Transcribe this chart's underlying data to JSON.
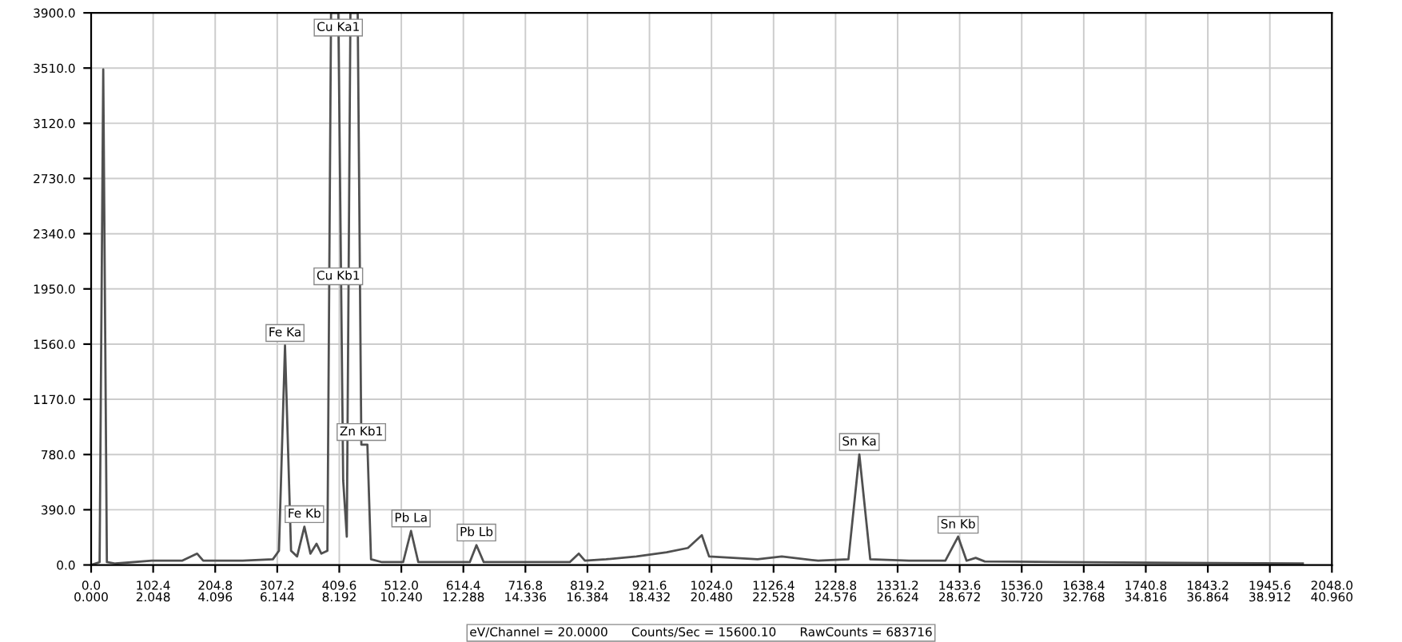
{
  "chart_data": {
    "type": "line",
    "color": "#505050",
    "x": [
      0,
      14,
      20,
      26,
      40,
      100,
      150,
      175,
      185,
      250,
      300,
      310,
      320,
      330,
      340,
      352,
      362,
      372,
      380,
      390,
      396,
      408,
      416,
      422,
      428,
      440,
      446,
      456,
      462,
      480,
      515,
      528,
      540,
      600,
      625,
      636,
      648,
      700,
      790,
      805,
      815,
      850,
      900,
      950,
      985,
      1008,
      1020,
      1100,
      1140,
      1200,
      1250,
      1268,
      1286,
      1350,
      1410,
      1431,
      1445,
      1460,
      1475,
      1600,
      1800,
      2000
    ],
    "values": [
      0,
      20,
      3500,
      20,
      10,
      30,
      30,
      80,
      30,
      30,
      40,
      100,
      1550,
      100,
      60,
      270,
      80,
      150,
      80,
      100,
      3900,
      3900,
      600,
      200,
      3900,
      3900,
      850,
      850,
      40,
      20,
      20,
      240,
      20,
      20,
      20,
      140,
      20,
      20,
      20,
      80,
      30,
      40,
      60,
      90,
      120,
      210,
      60,
      40,
      60,
      30,
      40,
      780,
      40,
      30,
      30,
      200,
      30,
      50,
      25,
      20,
      15,
      10
    ],
    "xlim": [
      0,
      2048
    ],
    "ylim": [
      0,
      3900
    ],
    "xticks": [
      {
        "value": 0,
        "label": "0.0"
      },
      102.4,
      204.8,
      307.2,
      409.6,
      {
        "value": 512,
        "label": "512.0"
      },
      614.4,
      716.8,
      819.2,
      921.6,
      {
        "value": 1024,
        "label": "1024.0"
      },
      1126.4,
      1228.8,
      1331.2,
      1433.6,
      {
        "value": 1536,
        "label": "1536.0"
      },
      1638.4,
      1740.8,
      1843.2,
      1945.6,
      {
        "value": 2048,
        "label": "2048.0"
      }
    ],
    "x2lim": [
      0,
      40.96
    ],
    "x2ticks": [
      {
        "value": 0,
        "label": "0.000"
      },
      2.048,
      4.096,
      6.144,
      8.192,
      {
        "value": 10.24,
        "label": "10.240"
      },
      12.288,
      14.336,
      16.384,
      18.432,
      {
        "value": 20.48,
        "label": "20.480"
      },
      22.528,
      24.576,
      26.624,
      28.672,
      {
        "value": 30.72,
        "label": "30.720"
      },
      32.768,
      34.816,
      36.864,
      38.912,
      {
        "value": 40.96,
        "label": "40.960"
      }
    ],
    "yticks": [
      {
        "value": 0,
        "label": "0.0"
      },
      {
        "value": 390,
        "label": "390.0"
      },
      {
        "value": 780,
        "label": "780.0"
      },
      {
        "value": 1170,
        "label": "1170.0"
      },
      {
        "value": 1560,
        "label": "1560.0"
      },
      {
        "value": 1950,
        "label": "1950.0"
      },
      {
        "value": 2340,
        "label": "2340.0"
      },
      {
        "value": 2730,
        "label": "2730.0"
      },
      {
        "value": 3120,
        "label": "3120.0"
      },
      {
        "value": 3510,
        "label": "3510.0"
      },
      {
        "value": 3900,
        "label": "3900.0"
      }
    ],
    "grid": true,
    "marker": "none",
    "line_style": "solid",
    "annotations": [
      {
        "text": "Fe Ka",
        "x": 320,
        "y": 1550
      },
      {
        "text": "Fe Kb",
        "x": 352,
        "y": 270
      },
      {
        "text": "Cu Ka1",
        "x": 408,
        "y": 3900
      },
      {
        "text": "Cu Kb1",
        "x": 408,
        "y": 1950
      },
      {
        "text": "Zn Kb1",
        "x": 446,
        "y": 850
      },
      {
        "text": "Pb La",
        "x": 528,
        "y": 240
      },
      {
        "text": "Pb Lb",
        "x": 636,
        "y": 140
      },
      {
        "text": "Sn Ka",
        "x": 1268,
        "y": 780
      },
      {
        "text": "Sn Kb",
        "x": 1431,
        "y": 195
      },
      "eV/Channel = 20.0000      Counts/Sec = 15600.10      RawCounts = 683716"
    ]
  }
}
